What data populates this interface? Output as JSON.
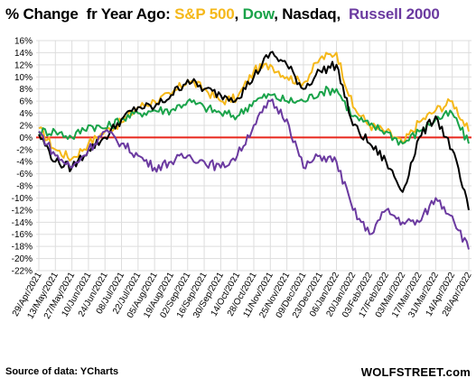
{
  "title": {
    "parts": [
      {
        "text": "% Change  fr Year Ago: ",
        "color": "#000000"
      },
      {
        "text": "S&P 500",
        "color": "#f5b81a"
      },
      {
        "text": ", ",
        "color": "#000000"
      },
      {
        "text": "Dow",
        "color": "#1aa34a"
      },
      {
        "text": ", Nasdaq,  ",
        "color": "#000000"
      },
      {
        "text": "Russell 2000",
        "color": "#6b3aa0"
      }
    ]
  },
  "source": "Source of data: YCharts",
  "watermark": "WOLFSTREET.com",
  "chart_data": {
    "type": "line",
    "categories": [
      "29/Apr/2021",
      "13/May/2021",
      "27/May/2021",
      "10/Jun/2021",
      "24/Jun/2021",
      "08/Jul/2021",
      "22/Jul/2021",
      "05/Aug/2021",
      "19/Aug/2021",
      "02/Sep/2021",
      "16/Sep/2021",
      "30/Sep/2021",
      "14/Oct/2021",
      "28/Oct/2021",
      "11/Nov/2021",
      "25/Nov/2021",
      "09/Dec/2021",
      "23/Dec/2021",
      "06/Jan/2022",
      "20/Jan/2022",
      "03/Feb/2022",
      "17/Feb/2022",
      "03/Mar/2022",
      "17/Mar/2022",
      "31/Mar/2022",
      "14/Apr/2022",
      "28/Apr/2022"
    ],
    "ylim": [
      -22,
      16
    ],
    "yticks": [
      16,
      14,
      12,
      10,
      8,
      6,
      4,
      2,
      0,
      -2,
      -4,
      -6,
      -8,
      -10,
      -12,
      -14,
      -16,
      -18,
      -20,
      -22
    ],
    "ytick_labels": [
      "16%",
      "14%",
      "12%",
      "10%",
      "8%",
      "6%",
      "4%",
      "2%",
      "0%",
      "-2%",
      "-4%",
      "-6%",
      "-8%",
      "-10%",
      "-12%",
      "-14%",
      "-16%",
      "-18%",
      "-20%",
      "-22%"
    ],
    "zero_line_color": "#e8261c",
    "grid": true,
    "series": [
      {
        "name": "S&P 500",
        "color": "#f5b81a",
        "values": [
          1.5,
          -2,
          -3.5,
          -1,
          1,
          2.5,
          5,
          6,
          7,
          9.5,
          8,
          6,
          6.5,
          11,
          12,
          10,
          9,
          13,
          14,
          5,
          2,
          1,
          -1,
          2.5,
          4.5,
          6,
          1
        ]
      },
      {
        "name": "Dow",
        "color": "#1aa34a",
        "values": [
          1,
          1,
          0,
          2,
          1.5,
          3,
          4,
          4.5,
          4.5,
          6,
          5,
          4,
          3.5,
          6,
          7,
          6,
          6,
          7.5,
          8,
          3.5,
          2,
          1,
          -1,
          1,
          3,
          4,
          -1
        ]
      },
      {
        "name": "Nasdaq",
        "color": "#000000",
        "values": [
          0.5,
          -4,
          -5,
          -2,
          0,
          3,
          5,
          5,
          7,
          9.5,
          8,
          7,
          6.5,
          10,
          14,
          12,
          8,
          11,
          12,
          2,
          -1,
          -4,
          -9,
          0,
          3.5,
          -2,
          -12
        ]
      },
      {
        "name": "Russell 2000",
        "color": "#6b3aa0",
        "values": [
          1,
          -3,
          -5,
          -2,
          1,
          -1,
          -3,
          -5,
          -4,
          -3,
          -4,
          -5,
          -3,
          2,
          6,
          3,
          -5,
          -3,
          -4,
          -12,
          -16,
          -12,
          -14,
          -14,
          -10,
          -13,
          -18.5
        ]
      }
    ]
  }
}
